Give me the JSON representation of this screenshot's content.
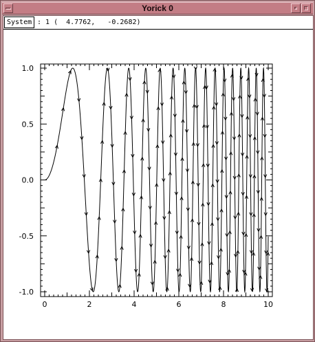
{
  "window": {
    "title": "Yorick 0"
  },
  "status": {
    "system_label": "System",
    "coordinates": ": 1 (  4.7762,   -0.2682)"
  },
  "chart_data": {
    "type": "line",
    "title": "",
    "xlabel": "",
    "ylabel": "",
    "xlim": [
      0,
      10
    ],
    "ylim": [
      -1,
      1
    ],
    "x_ticks": [
      "0",
      "2",
      "4",
      "6",
      "8",
      "10"
    ],
    "y_ticks": [
      "1.0",
      "0.5",
      "0.0",
      "-0.5",
      "-1.0"
    ],
    "x_tick_values": [
      0,
      2,
      4,
      6,
      8,
      10
    ],
    "y_tick_values": [
      1.0,
      0.5,
      0.0,
      -0.5,
      -1.0
    ],
    "series": [
      {
        "function": "sin(x^2)",
        "x_range": [
          0,
          10
        ],
        "marker": "arrowhead",
        "line_color": "#000000"
      }
    ],
    "grid": false
  }
}
